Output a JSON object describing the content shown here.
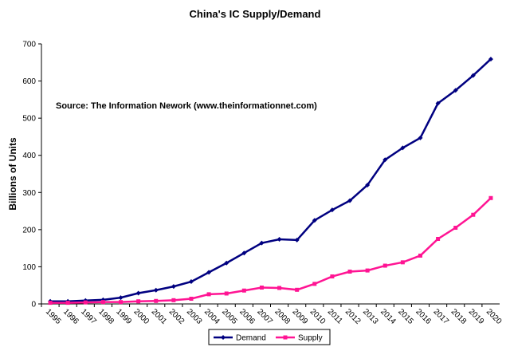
{
  "chart_data": {
    "type": "line",
    "title": "China's IC Supply/Demand",
    "y_label": "Billions of Units",
    "annotation": "Source: The Information Nework (www.theinformationnet.com)",
    "categories": [
      "1995",
      "1996",
      "1997",
      "1998",
      "1999",
      "2000",
      "2001",
      "2002",
      "2003",
      "2004",
      "2005",
      "2006",
      "2007",
      "2008",
      "2009",
      "2010",
      "2011",
      "2012",
      "2013",
      "2014",
      "2015",
      "2016",
      "2017",
      "2018",
      "2019",
      "2020"
    ],
    "series": [
      {
        "name": "Demand",
        "color": "#000080",
        "marker": "diamond",
        "values": [
          7,
          7,
          9,
          11,
          17,
          29,
          37,
          47,
          60,
          85,
          110,
          137,
          164,
          174,
          172,
          225,
          253,
          278,
          320,
          388,
          420,
          447,
          540,
          575,
          615,
          659
        ]
      },
      {
        "name": "Supply",
        "color": "#ff1493",
        "marker": "square",
        "values": [
          3,
          3,
          4,
          5,
          5,
          7,
          8,
          10,
          14,
          26,
          28,
          36,
          44,
          43,
          38,
          54,
          74,
          87,
          90,
          103,
          112,
          130,
          175,
          205,
          240,
          285
        ]
      }
    ],
    "ylim": [
      0,
      700
    ],
    "yticks": [
      0,
      100,
      200,
      300,
      400,
      500,
      600,
      700
    ],
    "legend": "bottom"
  }
}
